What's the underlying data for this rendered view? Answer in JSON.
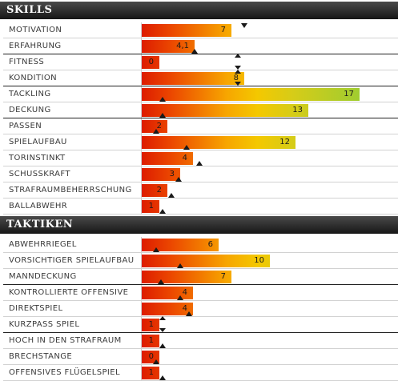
{
  "max_value": 20,
  "colors": {
    "header_bg": "#222222",
    "bar_low": "#dd1c00",
    "bar_mid": "#f4c800",
    "bar_high": "#9ccd32"
  },
  "sections": [
    {
      "id": "skills",
      "title": "SKILLS",
      "rows": [
        {
          "label": "MOTIVATION",
          "value": 7,
          "display": "7",
          "marker": 8.0,
          "marker_style": "down"
        },
        {
          "label": "ERFAHRUNG",
          "value": 4.1,
          "display": "4,1",
          "marker": 4.1,
          "marker_style": "up"
        },
        {
          "label": "FITNESS",
          "value": 0,
          "display": "0",
          "marker": 7.5,
          "marker_style": "both"
        },
        {
          "label": "KONDITION",
          "value": 8,
          "display": "8",
          "marker": 7.5,
          "marker_style": "both"
        },
        {
          "label": "TACKLING",
          "value": 17,
          "display": "17",
          "marker": 1.6,
          "marker_style": "up"
        },
        {
          "label": "DECKUNG",
          "value": 13,
          "display": "13",
          "marker": 1.6,
          "marker_style": "up"
        },
        {
          "label": "PASSEN",
          "value": 2,
          "display": "2",
          "marker": 1.1,
          "marker_style": "up"
        },
        {
          "label": "SPIELAUFBAU",
          "value": 12,
          "display": "12",
          "marker": 3.5,
          "marker_style": "up"
        },
        {
          "label": "TORINSTINKT",
          "value": 4,
          "display": "4",
          "marker": 4.5,
          "marker_style": "up"
        },
        {
          "label": "SCHUSSKRAFT",
          "value": 3,
          "display": "3",
          "marker": 2.9,
          "marker_style": "up"
        },
        {
          "label": "STRAFRAUMBEHERRSCHUNG",
          "value": 2,
          "display": "2",
          "marker": 2.3,
          "marker_style": "up"
        },
        {
          "label": "BALLABWEHR",
          "value": 1,
          "display": "1",
          "marker": 1.6,
          "marker_style": "up"
        }
      ]
    },
    {
      "id": "taktiken",
      "title": "TAKTIKEN",
      "rows": [
        {
          "label": "ABWEHRRIEGEL",
          "value": 6,
          "display": "6",
          "marker": 1.1,
          "marker_style": "up"
        },
        {
          "label": "VORSICHTIGER SPIELAUFBAU",
          "value": 10,
          "display": "10",
          "marker": 3.0,
          "marker_style": "up"
        },
        {
          "label": "MANNDECKUNG",
          "value": 7,
          "display": "7",
          "marker": 1.5,
          "marker_style": "up"
        },
        {
          "label": "KONTROLLIERTE OFFENSIVE",
          "value": 4,
          "display": "4",
          "marker": 3.0,
          "marker_style": "up"
        },
        {
          "label": "DIREKTSPIEL",
          "value": 4,
          "display": "4",
          "marker": 3.7,
          "marker_style": "up"
        },
        {
          "label": "KURZPASS SPIEL",
          "value": 1,
          "display": "1",
          "marker": 1.6,
          "marker_style": "both"
        },
        {
          "label": "HOCH IN DEN STRAFRAUM",
          "value": 1,
          "display": "1",
          "marker": 1.6,
          "marker_style": "up"
        },
        {
          "label": "BRECHSTANGE",
          "value": 0,
          "display": "0",
          "marker": 1.1,
          "marker_style": "up"
        },
        {
          "label": "OFFENSIVES FLÜGELSPIEL",
          "value": 1,
          "display": "1",
          "marker": 1.6,
          "marker_style": "up"
        }
      ]
    }
  ]
}
